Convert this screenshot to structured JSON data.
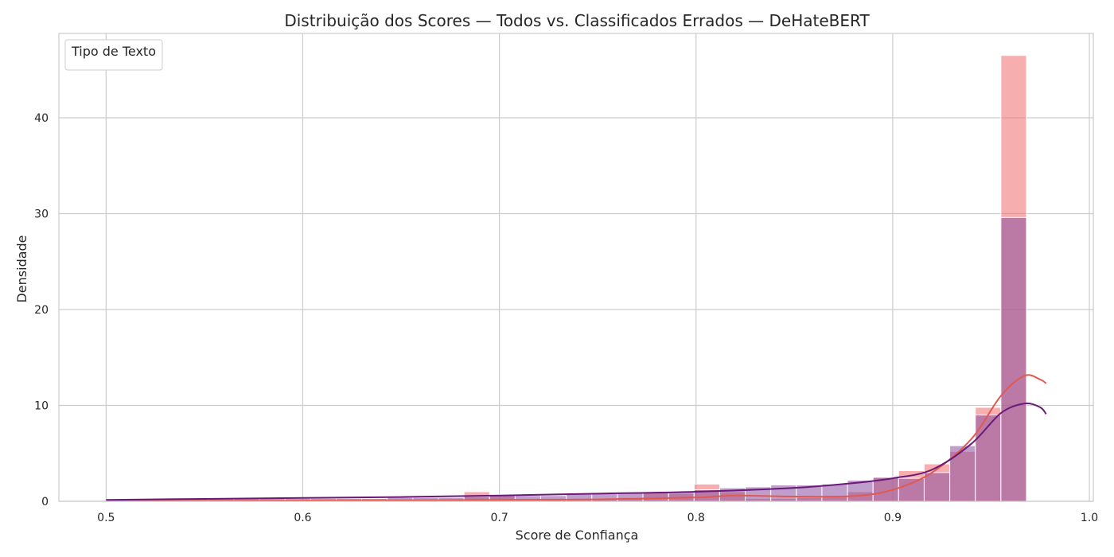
{
  "chart_data": {
    "type": "histogram",
    "title": "Distribuição dos Scores — Todos vs. Classificados Errados — DeHateBERT",
    "xlabel": "Score de Confiança",
    "ylabel": "Densidade",
    "xlim": [
      0.476,
      1.002
    ],
    "ylim": [
      0,
      48.8
    ],
    "xticks": [
      "0.5",
      "0.6",
      "0.7",
      "0.8",
      "0.9",
      "1.0"
    ],
    "yticks": [
      "0",
      "10",
      "20",
      "30",
      "40"
    ],
    "grid": true,
    "legend": {
      "title": "Tipo de Texto",
      "placement": "top-left",
      "entries": []
    },
    "bins": {
      "start": 0.5,
      "width": 0.013,
      "count": 37
    },
    "series": [
      {
        "color": "#ef6b6b",
        "kde_color": "#e05a50",
        "values": [
          0.1,
          0.1,
          0.1,
          0.1,
          0.1,
          0.1,
          0.1,
          0.1,
          0.1,
          0.1,
          0.1,
          0.1,
          0.1,
          0.2,
          1.0,
          0.7,
          0.2,
          0.2,
          0.2,
          0.3,
          0.4,
          0.9,
          0.8,
          1.8,
          1.0,
          0.3,
          0.3,
          0.4,
          0.6,
          1.0,
          2.5,
          3.2,
          3.9,
          5.2,
          9.8,
          46.5,
          0
        ],
        "kde": [
          [
            0.5,
            0.05
          ],
          [
            0.6,
            0.08
          ],
          [
            0.7,
            0.15
          ],
          [
            0.75,
            0.2
          ],
          [
            0.8,
            0.4
          ],
          [
            0.82,
            0.6
          ],
          [
            0.85,
            0.5
          ],
          [
            0.88,
            0.55
          ],
          [
            0.9,
            1.2
          ],
          [
            0.92,
            3.0
          ],
          [
            0.94,
            6.5
          ],
          [
            0.955,
            11.0
          ],
          [
            0.967,
            13.1
          ],
          [
            0.975,
            12.7
          ],
          [
            0.978,
            12.3
          ]
        ]
      },
      {
        "color": "#8b4fa0",
        "kde_color": "#6a1a78",
        "values": [
          0.1,
          0.1,
          0.2,
          0.2,
          0.3,
          0.3,
          0.3,
          0.3,
          0.3,
          0.3,
          0.3,
          0.4,
          0.4,
          0.4,
          0.5,
          0.6,
          0.6,
          0.6,
          0.8,
          0.8,
          0.9,
          0.9,
          1.0,
          1.2,
          1.4,
          1.5,
          1.7,
          1.7,
          1.8,
          2.2,
          2.5,
          2.4,
          3.0,
          5.8,
          9.0,
          29.6,
          0
        ],
        "kde": [
          [
            0.5,
            0.15
          ],
          [
            0.55,
            0.25
          ],
          [
            0.6,
            0.35
          ],
          [
            0.65,
            0.45
          ],
          [
            0.7,
            0.6
          ],
          [
            0.75,
            0.8
          ],
          [
            0.8,
            1.0
          ],
          [
            0.85,
            1.4
          ],
          [
            0.88,
            1.9
          ],
          [
            0.9,
            2.4
          ],
          [
            0.92,
            3.3
          ],
          [
            0.94,
            6.0
          ],
          [
            0.955,
            9.2
          ],
          [
            0.967,
            10.2
          ],
          [
            0.975,
            9.8
          ],
          [
            0.978,
            9.1
          ]
        ]
      }
    ]
  }
}
